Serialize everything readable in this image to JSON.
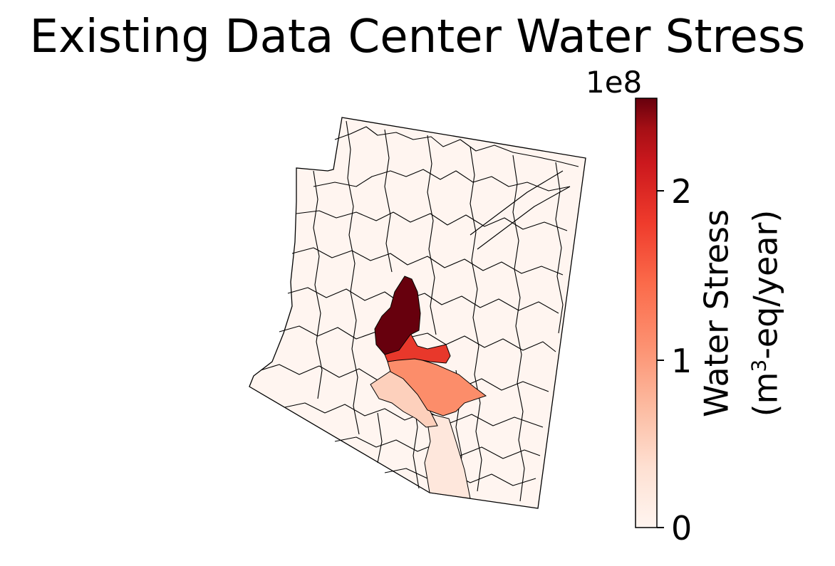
{
  "title": "Existing Data Center Water Stress",
  "colorbar": {
    "label_line1": "Water Stress",
    "label_line2_pre": "(m",
    "label_line2_sup": "3",
    "label_line2_post": "-eq/year)",
    "exponent_label": "1e8",
    "ticks": [
      {
        "value": 0,
        "label": "0"
      },
      {
        "value": 1,
        "label": "1"
      },
      {
        "value": 2,
        "label": "2"
      }
    ],
    "range": [
      0,
      2.5
    ],
    "colormap": "Reds",
    "colors": [
      "#fff5f0",
      "#fcbba1",
      "#fc9272",
      "#fb6a4a",
      "#ef3b2c",
      "#cb181d",
      "#a50f15",
      "#67000d"
    ]
  },
  "highlighted_regions": [
    {
      "value": 2.5,
      "color": "#67000d"
    },
    {
      "value": 1.5,
      "color": "#e8382b"
    },
    {
      "value": 0.9,
      "color": "#fc8d6a"
    },
    {
      "value": 0.35,
      "color": "#fdd0bc"
    },
    {
      "value": 0.15,
      "color": "#fee7dc"
    }
  ]
}
